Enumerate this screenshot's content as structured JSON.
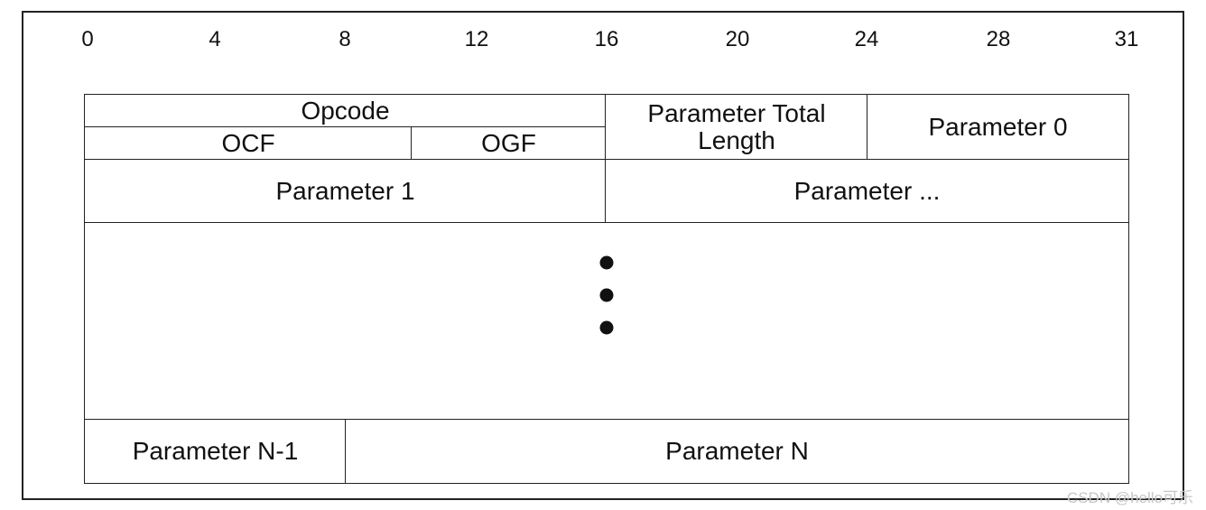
{
  "diagram": {
    "bit_labels": [
      "0",
      "4",
      "8",
      "12",
      "16",
      "20",
      "24",
      "28",
      "31"
    ],
    "fields": {
      "opcode": "Opcode",
      "ocf": "OCF",
      "ogf": "OGF",
      "parameter_total_length_line1": "Parameter Total",
      "parameter_total_length_line2": "Length",
      "parameter_0": "Parameter 0",
      "parameter_1": "Parameter 1",
      "parameter_ellipsis": "Parameter ...",
      "parameter_n_minus_1": "Parameter N-1",
      "parameter_n": "Parameter N"
    },
    "continuation_marker": "vertical-ellipsis-dots"
  },
  "watermark": {
    "text": "CSDN @hello可乐"
  }
}
